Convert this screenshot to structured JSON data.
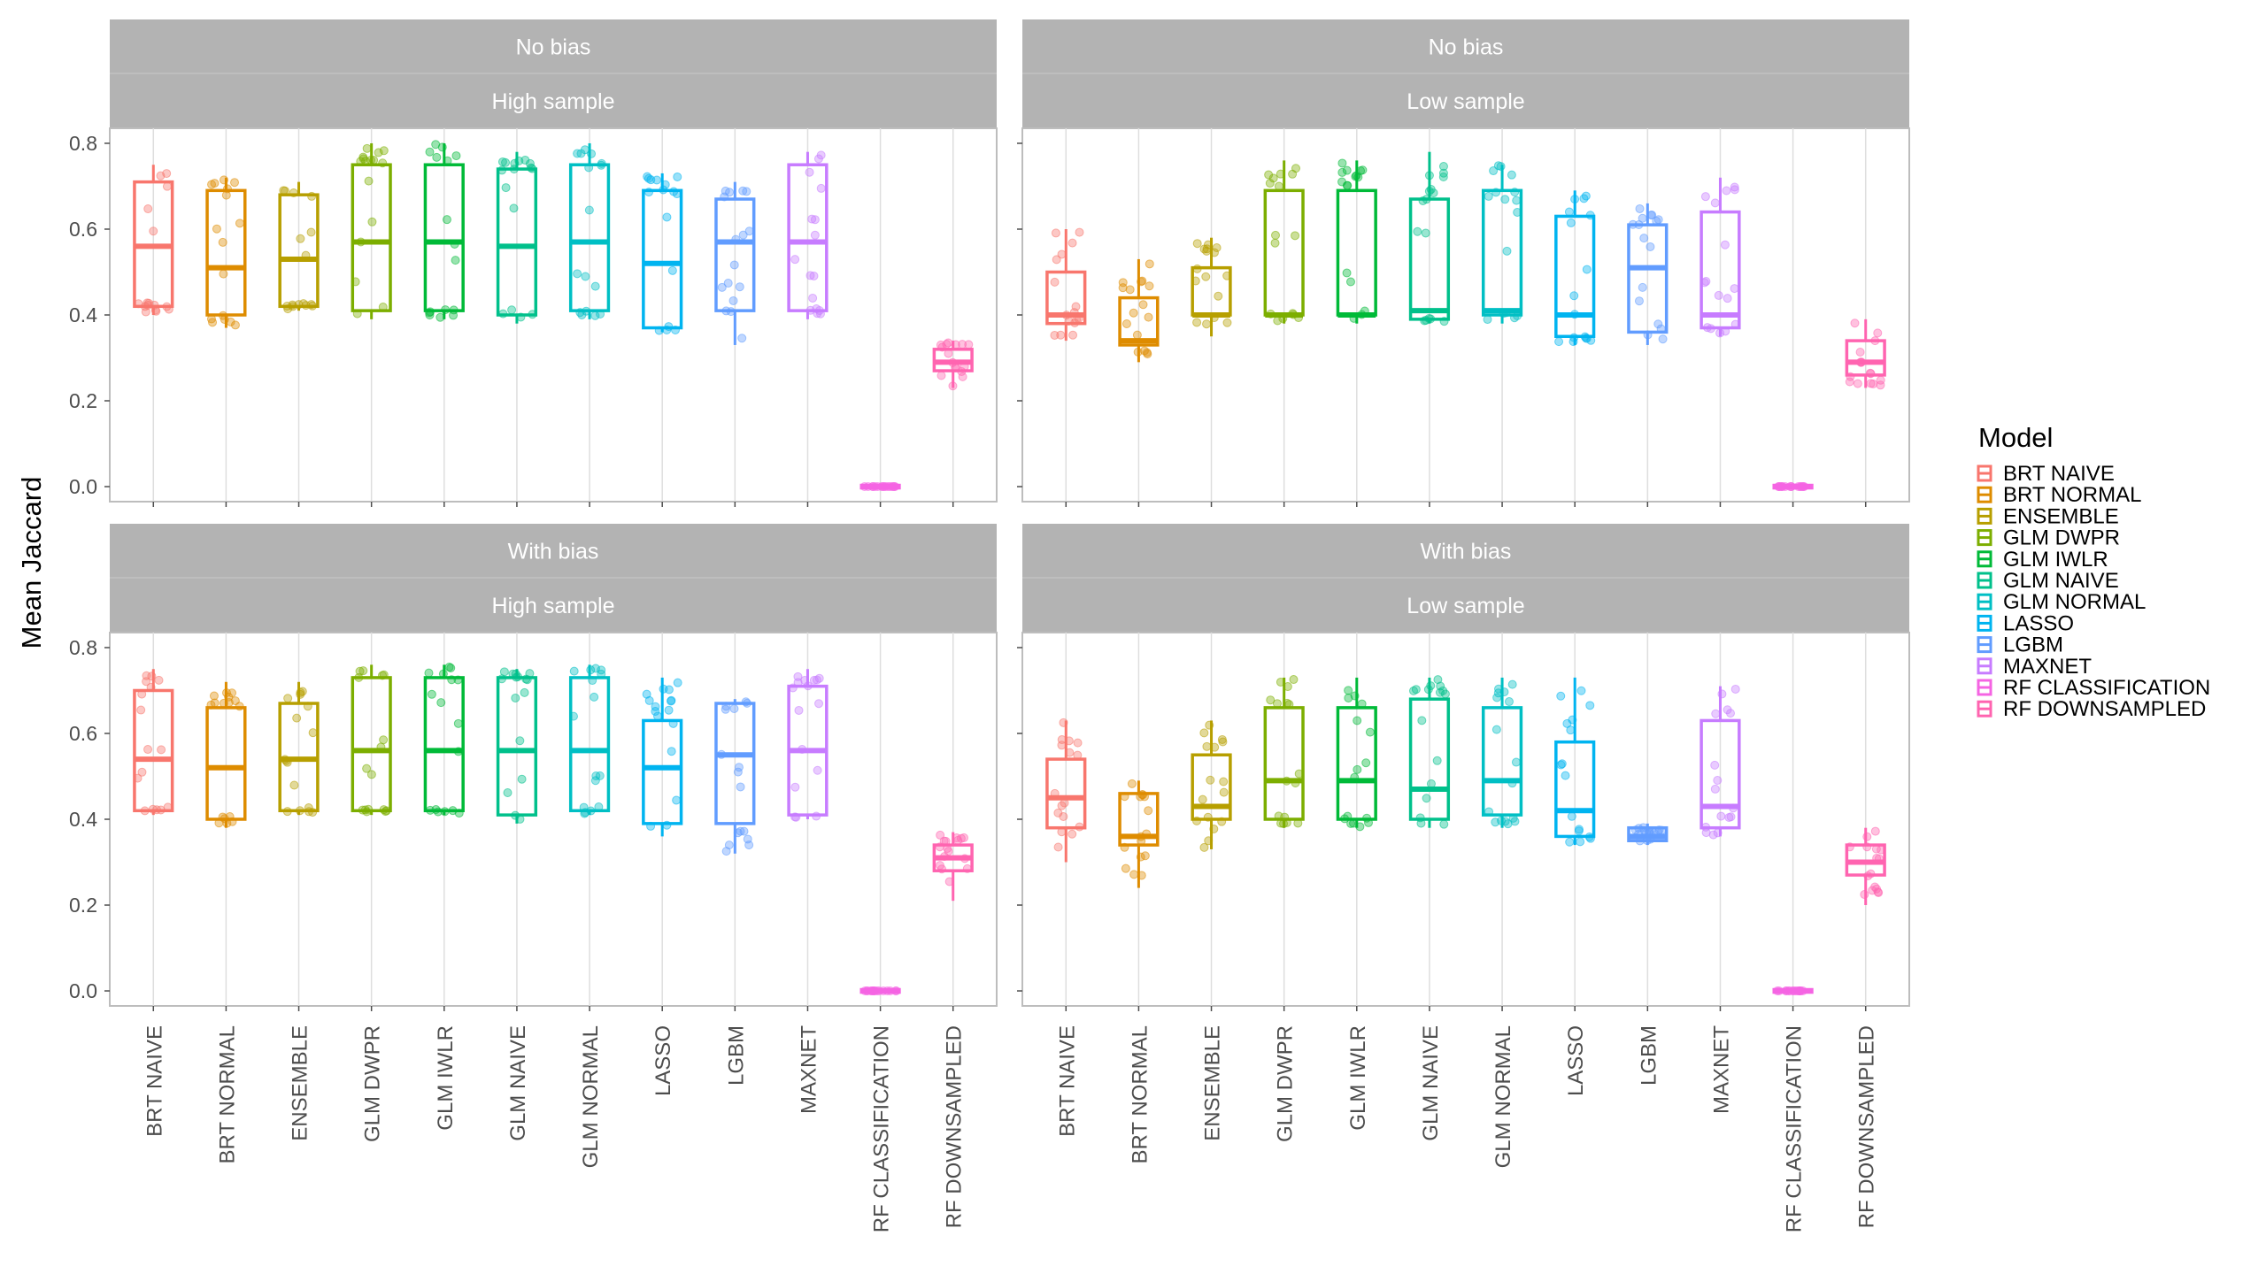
{
  "chart_data": {
    "type": "boxplot",
    "ylabel": "Mean Jaccard",
    "yticks": [
      "0.0",
      "0.2",
      "0.4",
      "0.6",
      "0.8"
    ],
    "ylim": [
      -0.035,
      0.835
    ],
    "legend": {
      "title": "Model",
      "placement": "right"
    },
    "categories": [
      "BRT NAIVE",
      "BRT NORMAL",
      "ENSEMBLE",
      "GLM DWPR",
      "GLM IWLR",
      "GLM NAIVE",
      "GLM NORMAL",
      "LASSO",
      "LGBM",
      "MAXNET",
      "RF CLASSIFICATION",
      "RF DOWNSAMPLED"
    ],
    "colors": [
      "#F8766D",
      "#DE8C00",
      "#B79F00",
      "#7CAE00",
      "#00BA38",
      "#00C08B",
      "#00BFC4",
      "#00B4F0",
      "#619CFF",
      "#C77CFF",
      "#F564E3",
      "#FF64B0"
    ],
    "grid": true,
    "panels": [
      {
        "strip_top": "No bias",
        "strip_bottom": "High sample",
        "boxes": [
          {
            "q1": 0.42,
            "median": 0.56,
            "q3": 0.71,
            "lower": 0.4,
            "upper": 0.75
          },
          {
            "q1": 0.4,
            "median": 0.51,
            "q3": 0.69,
            "lower": 0.37,
            "upper": 0.72
          },
          {
            "q1": 0.42,
            "median": 0.53,
            "q3": 0.68,
            "lower": 0.41,
            "upper": 0.71
          },
          {
            "q1": 0.41,
            "median": 0.57,
            "q3": 0.75,
            "lower": 0.39,
            "upper": 0.8
          },
          {
            "q1": 0.41,
            "median": 0.57,
            "q3": 0.75,
            "lower": 0.39,
            "upper": 0.8
          },
          {
            "q1": 0.4,
            "median": 0.56,
            "q3": 0.74,
            "lower": 0.38,
            "upper": 0.78
          },
          {
            "q1": 0.41,
            "median": 0.57,
            "q3": 0.75,
            "lower": 0.39,
            "upper": 0.8
          },
          {
            "q1": 0.37,
            "median": 0.52,
            "q3": 0.69,
            "lower": 0.36,
            "upper": 0.73
          },
          {
            "q1": 0.41,
            "median": 0.57,
            "q3": 0.67,
            "lower": 0.33,
            "upper": 0.71
          },
          {
            "q1": 0.41,
            "median": 0.57,
            "q3": 0.75,
            "lower": 0.39,
            "upper": 0.78
          },
          {
            "q1": 0.0,
            "median": 0.0,
            "q3": 0.0,
            "lower": 0.0,
            "upper": 0.0
          },
          {
            "q1": 0.27,
            "median": 0.29,
            "q3": 0.32,
            "lower": 0.23,
            "upper": 0.34
          }
        ]
      },
      {
        "strip_top": "No bias",
        "strip_bottom": "Low sample",
        "boxes": [
          {
            "q1": 0.38,
            "median": 0.4,
            "q3": 0.5,
            "lower": 0.34,
            "upper": 0.6
          },
          {
            "q1": 0.33,
            "median": 0.34,
            "q3": 0.44,
            "lower": 0.29,
            "upper": 0.53
          },
          {
            "q1": 0.4,
            "median": 0.4,
            "q3": 0.51,
            "lower": 0.35,
            "upper": 0.58
          },
          {
            "q1": 0.4,
            "median": 0.4,
            "q3": 0.69,
            "lower": 0.38,
            "upper": 0.76
          },
          {
            "q1": 0.4,
            "median": 0.4,
            "q3": 0.69,
            "lower": 0.38,
            "upper": 0.76
          },
          {
            "q1": 0.39,
            "median": 0.41,
            "q3": 0.67,
            "lower": 0.38,
            "upper": 0.78
          },
          {
            "q1": 0.4,
            "median": 0.41,
            "q3": 0.69,
            "lower": 0.38,
            "upper": 0.75
          },
          {
            "q1": 0.35,
            "median": 0.4,
            "q3": 0.63,
            "lower": 0.33,
            "upper": 0.69
          },
          {
            "q1": 0.36,
            "median": 0.51,
            "q3": 0.61,
            "lower": 0.33,
            "upper": 0.66
          },
          {
            "q1": 0.37,
            "median": 0.4,
            "q3": 0.64,
            "lower": 0.35,
            "upper": 0.72
          },
          {
            "q1": 0.0,
            "median": 0.0,
            "q3": 0.0,
            "lower": 0.0,
            "upper": 0.0
          },
          {
            "q1": 0.26,
            "median": 0.29,
            "q3": 0.34,
            "lower": 0.23,
            "upper": 0.39
          }
        ]
      },
      {
        "strip_top": "With bias",
        "strip_bottom": "High sample",
        "boxes": [
          {
            "q1": 0.42,
            "median": 0.54,
            "q3": 0.7,
            "lower": 0.41,
            "upper": 0.75
          },
          {
            "q1": 0.4,
            "median": 0.52,
            "q3": 0.66,
            "lower": 0.38,
            "upper": 0.72
          },
          {
            "q1": 0.42,
            "median": 0.54,
            "q3": 0.67,
            "lower": 0.41,
            "upper": 0.72
          },
          {
            "q1": 0.42,
            "median": 0.56,
            "q3": 0.73,
            "lower": 0.41,
            "upper": 0.76
          },
          {
            "q1": 0.42,
            "median": 0.56,
            "q3": 0.73,
            "lower": 0.41,
            "upper": 0.76
          },
          {
            "q1": 0.41,
            "median": 0.56,
            "q3": 0.73,
            "lower": 0.39,
            "upper": 0.75
          },
          {
            "q1": 0.42,
            "median": 0.56,
            "q3": 0.73,
            "lower": 0.41,
            "upper": 0.76
          },
          {
            "q1": 0.39,
            "median": 0.52,
            "q3": 0.63,
            "lower": 0.36,
            "upper": 0.73
          },
          {
            "q1": 0.39,
            "median": 0.55,
            "q3": 0.67,
            "lower": 0.32,
            "upper": 0.68
          },
          {
            "q1": 0.41,
            "median": 0.56,
            "q3": 0.71,
            "lower": 0.4,
            "upper": 0.75
          },
          {
            "q1": 0.0,
            "median": 0.0,
            "q3": 0.0,
            "lower": 0.0,
            "upper": 0.0
          },
          {
            "q1": 0.28,
            "median": 0.31,
            "q3": 0.34,
            "lower": 0.21,
            "upper": 0.37
          }
        ]
      },
      {
        "strip_top": "With bias",
        "strip_bottom": "Low sample",
        "boxes": [
          {
            "q1": 0.38,
            "median": 0.45,
            "q3": 0.54,
            "lower": 0.3,
            "upper": 0.63
          },
          {
            "q1": 0.34,
            "median": 0.36,
            "q3": 0.46,
            "lower": 0.24,
            "upper": 0.49
          },
          {
            "q1": 0.4,
            "median": 0.43,
            "q3": 0.55,
            "lower": 0.33,
            "upper": 0.63
          },
          {
            "q1": 0.4,
            "median": 0.49,
            "q3": 0.66,
            "lower": 0.38,
            "upper": 0.73
          },
          {
            "q1": 0.4,
            "median": 0.49,
            "q3": 0.66,
            "lower": 0.38,
            "upper": 0.73
          },
          {
            "q1": 0.4,
            "median": 0.47,
            "q3": 0.68,
            "lower": 0.38,
            "upper": 0.73
          },
          {
            "q1": 0.41,
            "median": 0.49,
            "q3": 0.66,
            "lower": 0.38,
            "upper": 0.73
          },
          {
            "q1": 0.36,
            "median": 0.42,
            "q3": 0.58,
            "lower": 0.34,
            "upper": 0.73
          },
          {
            "q1": 0.35,
            "median": 0.36,
            "q3": 0.38,
            "lower": 0.34,
            "upper": 0.39
          },
          {
            "q1": 0.38,
            "median": 0.43,
            "q3": 0.63,
            "lower": 0.36,
            "upper": 0.71
          },
          {
            "q1": 0.0,
            "median": 0.0,
            "q3": 0.0,
            "lower": 0.0,
            "upper": 0.0
          },
          {
            "q1": 0.27,
            "median": 0.3,
            "q3": 0.34,
            "lower": 0.2,
            "upper": 0.38
          }
        ]
      }
    ]
  }
}
